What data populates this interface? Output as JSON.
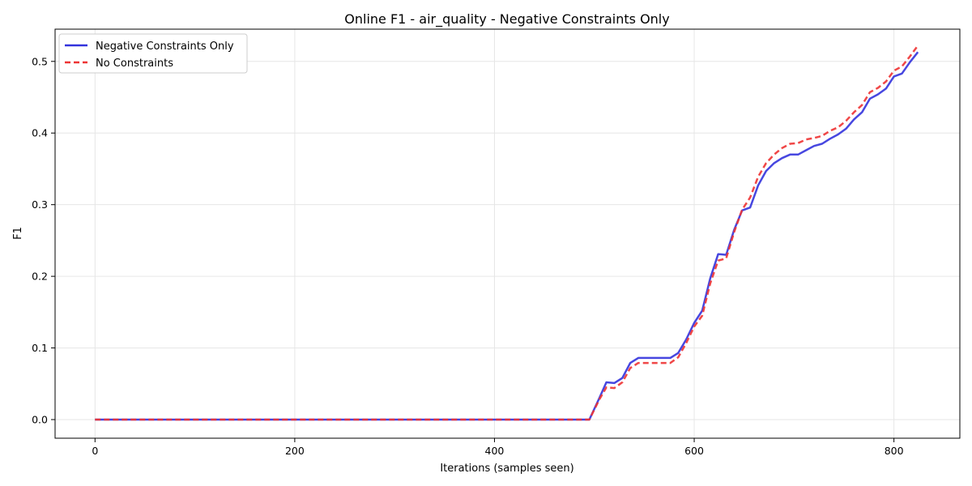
{
  "chart_data": {
    "type": "line",
    "title": "Online F1 - air_quality - Negative Constraints Only",
    "xlabel": "Iterations (samples seen)",
    "ylabel": "F1",
    "xlim": [
      -40,
      866
    ],
    "ylim": [
      -0.026,
      0.545
    ],
    "xticks": [
      0,
      200,
      400,
      600,
      800
    ],
    "yticks": [
      0.0,
      0.1,
      0.2,
      0.3,
      0.4,
      0.5
    ],
    "xtick_labels": [
      "0",
      "200",
      "400",
      "600",
      "800"
    ],
    "ytick_labels": [
      "0.0",
      "0.1",
      "0.2",
      "0.3",
      "0.4",
      "0.5"
    ],
    "grid": true,
    "legend_position": "top-left",
    "series": [
      {
        "name": "Negative Constraints Only",
        "color": "#3333dd",
        "style": "solid",
        "x": [
          0,
          100,
          200,
          300,
          400,
          495,
          505,
          512,
          520,
          528,
          536,
          544,
          552,
          560,
          568,
          576,
          584,
          592,
          600,
          608,
          616,
          624,
          632,
          640,
          648,
          656,
          664,
          672,
          680,
          688,
          696,
          704,
          712,
          720,
          728,
          736,
          744,
          752,
          760,
          768,
          776,
          784,
          792,
          800,
          808,
          816,
          824
        ],
        "y": [
          0,
          0,
          0,
          0,
          0,
          0,
          0.03,
          0.052,
          0.051,
          0.058,
          0.079,
          0.086,
          0.086,
          0.086,
          0.086,
          0.086,
          0.093,
          0.112,
          0.135,
          0.152,
          0.197,
          0.231,
          0.23,
          0.265,
          0.292,
          0.296,
          0.327,
          0.347,
          0.358,
          0.365,
          0.37,
          0.37,
          0.376,
          0.382,
          0.385,
          0.392,
          0.398,
          0.406,
          0.419,
          0.429,
          0.448,
          0.454,
          0.462,
          0.479,
          0.483,
          0.499,
          0.513
        ]
      },
      {
        "name": "No Constraints",
        "color": "#ee3333",
        "style": "dashed",
        "x": [
          0,
          100,
          200,
          300,
          400,
          495,
          505,
          512,
          520,
          528,
          536,
          544,
          552,
          560,
          568,
          576,
          584,
          592,
          600,
          608,
          616,
          624,
          632,
          640,
          648,
          656,
          664,
          672,
          680,
          688,
          696,
          704,
          712,
          720,
          728,
          736,
          744,
          752,
          760,
          768,
          776,
          784,
          792,
          800,
          808,
          816,
          824
        ],
        "y": [
          0,
          0,
          0,
          0,
          0,
          0,
          0.028,
          0.045,
          0.044,
          0.052,
          0.072,
          0.079,
          0.079,
          0.079,
          0.079,
          0.079,
          0.087,
          0.107,
          0.13,
          0.145,
          0.19,
          0.222,
          0.225,
          0.262,
          0.293,
          0.31,
          0.339,
          0.358,
          0.37,
          0.379,
          0.385,
          0.386,
          0.391,
          0.393,
          0.396,
          0.403,
          0.408,
          0.417,
          0.429,
          0.439,
          0.457,
          0.463,
          0.472,
          0.487,
          0.493,
          0.507,
          0.522
        ]
      }
    ]
  }
}
